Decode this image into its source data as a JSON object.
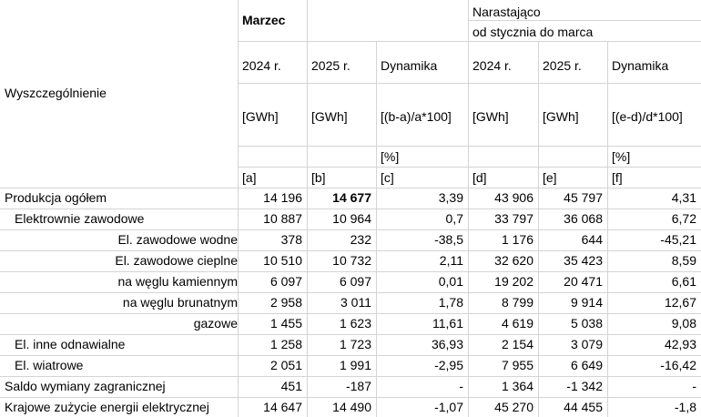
{
  "header": {
    "row_label": "Wyszczególnienie",
    "group1": "Marzec",
    "group2_line1": "Narastająco",
    "group2_line2": "od stycznia do marca",
    "year_a": "2024 r.",
    "year_b": "2025 r.",
    "dyn1": "Dynamika",
    "year_d": "2024 r.",
    "year_e": "2025 r.",
    "dyn2": "Dynamika",
    "unit_a": "[GWh]",
    "unit_b": "[GWh]",
    "formula1": "[(b-a)/a*100]",
    "unit_d": "[GWh]",
    "unit_e": "[GWh]",
    "formula2": "[(e-d)/d*100]",
    "pct1": "[%]",
    "pct2": "[%]",
    "col_a": "[a]",
    "col_b": "[b]",
    "col_c": "[c]",
    "col_d": "[d]",
    "col_e": "[e]",
    "col_f": "[f]"
  },
  "rows": [
    {
      "label": "Produkcja ogółem",
      "a": "14 196",
      "b": "14 677",
      "c": "3,39",
      "d": "43 906",
      "e": "45 797",
      "f": "4,31"
    },
    {
      "label": "Elektrownie zawodowe",
      "a": "10 887",
      "b": "10 964",
      "c": "0,7",
      "d": "33 797",
      "e": "36 068",
      "f": "6,72"
    },
    {
      "label": "El. zawodowe wodne",
      "a": "378",
      "b": "232",
      "c": "-38,5",
      "d": "1 176",
      "e": "644",
      "f": "-45,21"
    },
    {
      "label": "El. zawodowe cieplne",
      "a": "10 510",
      "b": "10 732",
      "c": "2,11",
      "d": "32 620",
      "e": "35 423",
      "f": "8,59"
    },
    {
      "label": "na węglu kamiennym",
      "a": "6 097",
      "b": "6 097",
      "c": "0,01",
      "d": "19 202",
      "e": "20 471",
      "f": "6,61"
    },
    {
      "label": "na węglu brunatnym",
      "a": "2 958",
      "b": "3 011",
      "c": "1,78",
      "d": "8 799",
      "e": "9 914",
      "f": "12,67"
    },
    {
      "label": "gazowe",
      "a": "1 455",
      "b": "1 623",
      "c": "11,61",
      "d": "4 619",
      "e": "5 038",
      "f": "9,08"
    },
    {
      "label": "El. inne odnawialne",
      "a": "1 258",
      "b": "1 723",
      "c": "36,93",
      "d": "2 154",
      "e": "3 079",
      "f": "42,93"
    },
    {
      "label": "El. wiatrowe",
      "a": "2 051",
      "b": "1 991",
      "c": "-2,95",
      "d": "7 955",
      "e": "6 649",
      "f": "-16,42"
    },
    {
      "label": "Saldo wymiany zagranicznej",
      "a": "451",
      "b": "-187",
      "c": "-",
      "d": "1 364",
      "e": "-1 342",
      "f": "-"
    },
    {
      "label": "Krajowe zużycie energii elektrycznej",
      "a": "14 647",
      "b": "14 490",
      "c": "-1,07",
      "d": "45 270",
      "e": "44 455",
      "f": "-1,8"
    }
  ]
}
